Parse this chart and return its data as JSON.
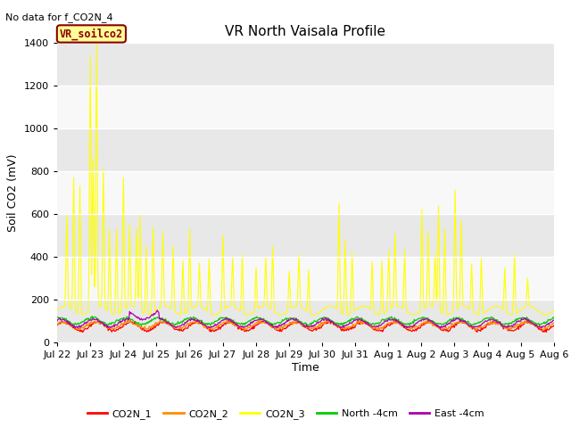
{
  "title": "VR North Vaisala Profile",
  "top_left_text": "No data for f_CO2N_4",
  "ylabel": "Soil CO2 (mV)",
  "xlabel": "Time",
  "ylim": [
    0,
    1400
  ],
  "fig_bg_color": "#ffffff",
  "plot_bg_color": "#f0f0f0",
  "legend_box_text": "VR_soilco2",
  "legend_box_bg": "#ffff99",
  "legend_box_border": "#8b0000",
  "series": {
    "CO2N_1": {
      "color": "#ff0000",
      "label": "CO2N_1"
    },
    "CO2N_2": {
      "color": "#ff8c00",
      "label": "CO2N_2"
    },
    "CO2N_3": {
      "color": "#ffff00",
      "label": "CO2N_3"
    },
    "North_4cm": {
      "color": "#00cc00",
      "label": "North -4cm"
    },
    "East_4cm": {
      "color": "#aa00aa",
      "label": "East -4cm"
    }
  },
  "xtick_labels": [
    "Jul 22",
    "Jul 23",
    "Jul 24",
    "Jul 25",
    "Jul 26",
    "Jul 27",
    "Jul 28",
    "Jul 29",
    "Jul 30",
    "Jul 31",
    "Aug 1",
    "Aug 2",
    "Aug 3",
    "Aug 4",
    "Aug 5",
    "Aug 6"
  ],
  "yticks": [
    0,
    200,
    400,
    600,
    800,
    1000,
    1200,
    1400
  ],
  "num_days": 15,
  "ppd": 48,
  "band_colors": [
    "#e8e8e8",
    "#f8f8f8"
  ]
}
